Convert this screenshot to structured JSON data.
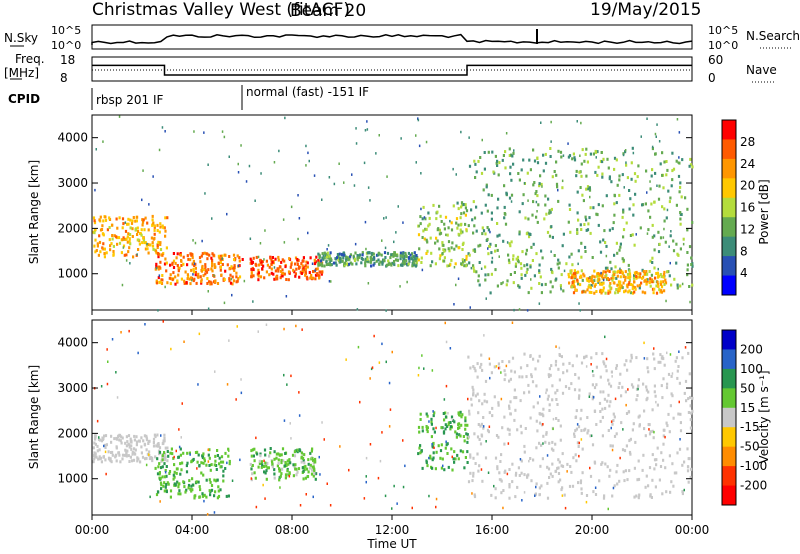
{
  "header": {
    "station": "Christmas Valley West (fitACF)",
    "beam": "Beam 20",
    "date": "19/May/2015"
  },
  "summary_panels": {
    "nsky_label": "N.Sky",
    "nsky_ticks": [
      "10^5",
      "10^0"
    ],
    "nsearch_label": "N.Search",
    "nsearch_ticks": [
      "10^5",
      "10^0"
    ],
    "freq_label_line1": "Freq.",
    "freq_label_line2": "[MHz]",
    "freq_ticks": [
      "18",
      "8"
    ],
    "nave_label": "Nave",
    "nave_ticks": [
      "60",
      "0"
    ],
    "cpid_label": "CPID",
    "cpid_segments": [
      {
        "label": "rbsp 201 IF",
        "start_hour": 0
      },
      {
        "label": "normal (fast) -151 IF",
        "start_hour": 6
      }
    ],
    "frequency_mhz": [
      {
        "start_hour": 0,
        "end_hour": 2.9,
        "value": 14.5
      },
      {
        "start_hour": 2.9,
        "end_hour": 15.0,
        "value": 10.5
      },
      {
        "start_hour": 15.0,
        "end_hour": 24,
        "value": 14.5
      }
    ]
  },
  "chart_data": [
    {
      "type": "heatmap",
      "name": "power",
      "ylabel": "Slant Range [km]",
      "ylim": [
        200,
        4500
      ],
      "yticks": [
        "4000",
        "3000",
        "2000",
        "1000"
      ],
      "xlim_hours": [
        0,
        24
      ],
      "colorbar_label": "Power [dB]",
      "colorbar_ticks": [
        "28",
        "24",
        "20",
        "16",
        "12",
        "8",
        "4"
      ],
      "colorbar_colors": [
        "#ff0000",
        "#ff5a00",
        "#ff9600",
        "#ffc800",
        "#b4dc3c",
        "#64aa50",
        "#3c8c78",
        "#2850b4",
        "#0000ff"
      ],
      "features": [
        {
          "start_hour": 0.0,
          "end_hour": 3.0,
          "range_km": [
            1400,
            2300
          ],
          "power_db": 22
        },
        {
          "start_hour": 2.5,
          "end_hour": 6.0,
          "range_km": [
            800,
            1500
          ],
          "power_db": 26
        },
        {
          "start_hour": 6.3,
          "end_hour": 9.2,
          "range_km": [
            900,
            1400
          ],
          "power_db": 28
        },
        {
          "start_hour": 9.0,
          "end_hour": 13.0,
          "range_km": [
            1200,
            1500
          ],
          "power_db": 10
        },
        {
          "start_hour": 13.0,
          "end_hour": 15.0,
          "range_km": [
            1200,
            2600
          ],
          "power_db": 14
        },
        {
          "start_hour": 15.0,
          "end_hour": 24.0,
          "range_km": [
            600,
            3800
          ],
          "power_db": 12
        },
        {
          "start_hour": 19.0,
          "end_hour": 23.0,
          "range_km": [
            600,
            1100
          ],
          "power_db": 22
        }
      ]
    },
    {
      "type": "heatmap",
      "name": "velocity",
      "ylabel": "Slant Range [km]",
      "ylim": [
        200,
        4500
      ],
      "yticks": [
        "4000",
        "3000",
        "2000",
        "1000"
      ],
      "xlim_hours": [
        0,
        24
      ],
      "xticks": [
        "00:00",
        "04:00",
        "08:00",
        "12:00",
        "16:00",
        "20:00",
        "00:00"
      ],
      "xlabel": "Time UT",
      "colorbar_label": "Velocity [m s⁻¹]",
      "colorbar_ticks": [
        "200",
        "100",
        "50",
        "15",
        "-15",
        "-50",
        "-100",
        "-200"
      ],
      "colorbar_colors": [
        "#0000c8",
        "#2864c8",
        "#289650",
        "#64c832",
        "#c8c8c8",
        "#ffc800",
        "#ff8c00",
        "#ff3200",
        "#ff0000"
      ],
      "features": [
        {
          "start_hour": 0.0,
          "end_hour": 3.0,
          "range_km": [
            1400,
            2000
          ],
          "velocity_ms": 0
        },
        {
          "start_hour": 2.5,
          "end_hour": 5.5,
          "range_km": [
            600,
            1700
          ],
          "velocity_ms": 30
        },
        {
          "start_hour": 6.3,
          "end_hour": 9.0,
          "range_km": [
            1000,
            1700
          ],
          "velocity_ms": 25
        },
        {
          "start_hour": 13.0,
          "end_hour": 15.0,
          "range_km": [
            1200,
            2500
          ],
          "velocity_ms": 30
        },
        {
          "start_hour": 15.0,
          "end_hour": 24.0,
          "range_km": [
            600,
            3800
          ],
          "velocity_ms": 0
        }
      ]
    }
  ]
}
